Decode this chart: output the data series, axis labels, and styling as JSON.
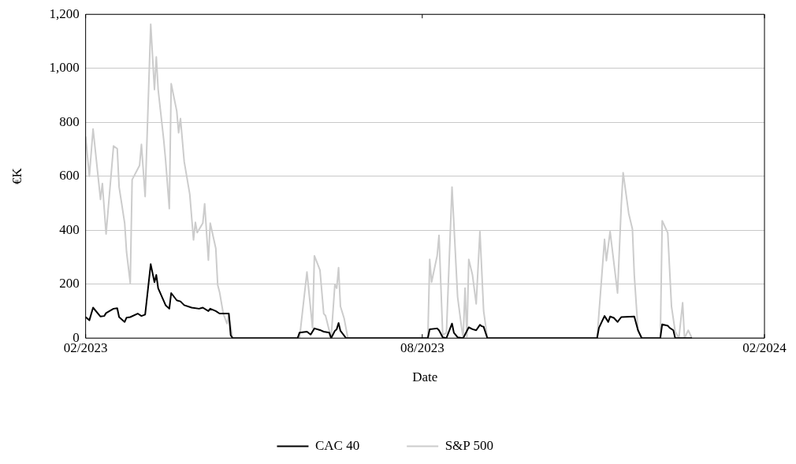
{
  "chart_data": {
    "type": "line",
    "xlabel": "Date",
    "ylabel": "€K",
    "xlim": [
      "2023-02-01",
      "2024-02-01"
    ],
    "xticks": [
      {
        "value": "2023-02-01",
        "label": "02/2023"
      },
      {
        "value": "2023-08-01",
        "label": "08/2023"
      },
      {
        "value": "2024-02-01",
        "label": "02/2024"
      }
    ],
    "ylim": [
      0,
      1200
    ],
    "yticks": [
      0,
      200,
      400,
      600,
      800,
      {
        "value": 1000,
        "label": "1,000"
      },
      {
        "value": 1200,
        "label": "1,200"
      }
    ],
    "grid": "y",
    "legend": "bottom",
    "marker": "none",
    "line_style": "solid",
    "series": [
      {
        "name": "CAC 40",
        "color": "#000000",
        "x": [
          "2023-02-01",
          "2023-02-03",
          "2023-02-05",
          "2023-02-09",
          "2023-02-11",
          "2023-02-12",
          "2023-02-16",
          "2023-02-18",
          "2023-02-19",
          "2023-02-22",
          "2023-02-23",
          "2023-02-25",
          "2023-03-01",
          "2023-03-03",
          "2023-03-05",
          "2023-03-08",
          "2023-03-10",
          "2023-03-11",
          "2023-03-12",
          "2023-03-16",
          "2023-03-18",
          "2023-03-19",
          "2023-03-22",
          "2023-03-24",
          "2023-03-26",
          "2023-03-30",
          "2023-04-03",
          "2023-04-05",
          "2023-04-08",
          "2023-04-09",
          "2023-04-12",
          "2023-04-14",
          "2023-04-19",
          "2023-04-20",
          "2023-04-21",
          "2023-05-26",
          "2023-05-27",
          "2023-05-31",
          "2023-06-02",
          "2023-06-04",
          "2023-06-07",
          "2023-06-09",
          "2023-06-12",
          "2023-06-13",
          "2023-06-15",
          "2023-06-16",
          "2023-06-17",
          "2023-06-18",
          "2023-06-21",
          "2023-08-04",
          "2023-08-05",
          "2023-08-09",
          "2023-08-10",
          "2023-08-12",
          "2023-08-14",
          "2023-08-17",
          "2023-08-18",
          "2023-08-20",
          "2023-08-23",
          "2023-08-26",
          "2023-08-28",
          "2023-08-30",
          "2023-09-01",
          "2023-09-02",
          "2023-09-03",
          "2023-09-05",
          "2023-11-03",
          "2023-11-04",
          "2023-11-07",
          "2023-11-09",
          "2023-11-10",
          "2023-11-12",
          "2023-11-14",
          "2023-11-16",
          "2023-11-23",
          "2023-11-25",
          "2023-11-27",
          "2023-12-07",
          "2023-12-08",
          "2023-12-11",
          "2023-12-12",
          "2023-12-14",
          "2023-12-15",
          "2023-12-24"
        ],
        "values": [
          78,
          66,
          113,
          80,
          82,
          93,
          109,
          111,
          78,
          60,
          76,
          78,
          91,
          82,
          87,
          274,
          207,
          234,
          185,
          122,
          109,
          167,
          140,
          136,
          122,
          113,
          109,
          113,
          100,
          109,
          100,
          91,
          91,
          11,
          0,
          0,
          20,
          24,
          13,
          36,
          30,
          24,
          20,
          0,
          27,
          33,
          56,
          27,
          0,
          0,
          33,
          36,
          29,
          3,
          0,
          54,
          20,
          3,
          0,
          40,
          33,
          29,
          49,
          44,
          42,
          0,
          0,
          38,
          82,
          60,
          80,
          75,
          60,
          78,
          80,
          29,
          0,
          0,
          51,
          46,
          38,
          29,
          0,
          0
        ]
      },
      {
        "name": "S&P 500",
        "color": "#cccccc",
        "x": [
          "2023-02-01",
          "2023-02-03",
          "2023-02-05",
          "2023-02-09",
          "2023-02-10",
          "2023-02-12",
          "2023-02-16",
          "2023-02-18",
          "2023-02-19",
          "2023-02-22",
          "2023-02-23",
          "2023-02-25",
          "2023-02-26",
          "2023-03-02",
          "2023-03-03",
          "2023-03-05",
          "2023-03-08",
          "2023-03-10",
          "2023-03-11",
          "2023-03-12",
          "2023-03-15",
          "2023-03-16",
          "2023-03-18",
          "2023-03-19",
          "2023-03-22",
          "2023-03-23",
          "2023-03-24",
          "2023-03-26",
          "2023-03-29",
          "2023-03-31",
          "2023-04-01",
          "2023-04-02",
          "2023-04-05",
          "2023-04-06",
          "2023-04-08",
          "2023-04-09",
          "2023-04-12",
          "2023-04-13",
          "2023-04-14",
          "2023-04-16",
          "2023-04-18",
          "2023-04-19",
          "2023-04-21",
          "2023-05-27",
          "2023-05-31",
          "2023-06-03",
          "2023-06-04",
          "2023-06-07",
          "2023-06-09",
          "2023-06-10",
          "2023-06-13",
          "2023-06-15",
          "2023-06-16",
          "2023-06-17",
          "2023-06-18",
          "2023-06-20",
          "2023-06-22",
          "2023-08-04",
          "2023-08-05",
          "2023-08-06",
          "2023-08-09",
          "2023-08-10",
          "2023-08-12",
          "2023-08-14",
          "2023-08-17",
          "2023-08-20",
          "2023-08-22",
          "2023-08-23",
          "2023-08-24",
          "2023-08-25",
          "2023-08-26",
          "2023-08-28",
          "2023-08-30",
          "2023-09-01",
          "2023-09-03",
          "2023-09-05",
          "2023-11-03",
          "2023-11-07",
          "2023-11-08",
          "2023-11-10",
          "2023-11-14",
          "2023-11-16",
          "2023-11-17",
          "2023-11-20",
          "2023-11-22",
          "2023-11-23",
          "2023-11-25",
          "2023-11-27",
          "2023-12-07",
          "2023-12-08",
          "2023-12-11",
          "2023-12-13",
          "2023-12-15",
          "2023-12-17",
          "2023-12-19",
          "2023-12-20",
          "2023-12-22",
          "2023-12-24",
          "2024-02-01"
        ],
        "values": [
          747,
          600,
          775,
          514,
          573,
          386,
          712,
          702,
          560,
          426,
          319,
          204,
          587,
          640,
          718,
          525,
          1163,
          921,
          1042,
          921,
          734,
          659,
          480,
          943,
          841,
          761,
          814,
          654,
          533,
          364,
          429,
          391,
          426,
          498,
          289,
          426,
          332,
          198,
          171,
          91,
          54,
          86,
          0,
          0,
          245,
          38,
          305,
          252,
          91,
          83,
          0,
          198,
          185,
          261,
          118,
          73,
          0,
          0,
          292,
          207,
          305,
          381,
          11,
          20,
          560,
          153,
          46,
          0,
          185,
          5,
          292,
          234,
          127,
          395,
          100,
          0,
          0,
          366,
          287,
          395,
          167,
          493,
          613,
          462,
          404,
          234,
          29,
          0,
          0,
          435,
          390,
          118,
          24,
          0,
          131,
          0,
          29,
          0,
          0
        ]
      }
    ]
  }
}
